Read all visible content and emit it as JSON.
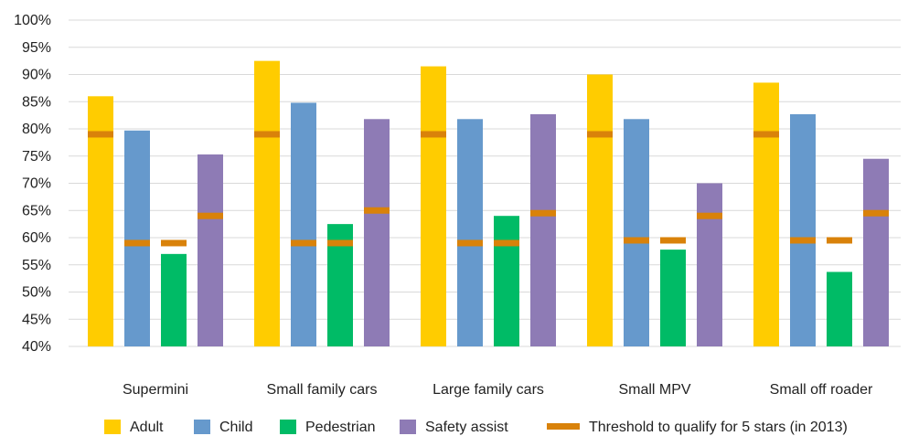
{
  "chart_data": {
    "type": "bar",
    "title": "",
    "xlabel": "",
    "ylabel": "",
    "ylim": [
      40,
      100
    ],
    "y_tick_step": 5,
    "y_tick_format": "percent",
    "grid": "horizontal",
    "legend_position": "bottom",
    "categories": [
      "Supermini",
      "Small family cars",
      "Large family cars",
      "Small MPV",
      "Small off roader"
    ],
    "series": [
      {
        "name": "Adult",
        "color": "#FFCC00",
        "values": [
          86,
          92.5,
          91.5,
          90,
          88.5
        ]
      },
      {
        "name": "Child",
        "color": "#6699CC",
        "values": [
          79.7,
          84.8,
          81.8,
          81.8,
          82.7
        ]
      },
      {
        "name": "Pedestrian",
        "color": "#00BB66",
        "values": [
          57,
          62.5,
          64,
          57.8,
          53.7
        ]
      },
      {
        "name": "Safety assist",
        "color": "#8E7BB5",
        "values": [
          75.3,
          81.8,
          82.7,
          70,
          74.5
        ]
      }
    ],
    "threshold": {
      "name": "Threshold to qualify for 5 stars (in 2013)",
      "color": "#D9820A",
      "values": [
        [
          79,
          59,
          59,
          64
        ],
        [
          79,
          59,
          59,
          65
        ],
        [
          79,
          59,
          59,
          64.5
        ],
        [
          79,
          59.5,
          59.5,
          64
        ],
        [
          79,
          59.5,
          59.5,
          64.5
        ]
      ]
    }
  }
}
